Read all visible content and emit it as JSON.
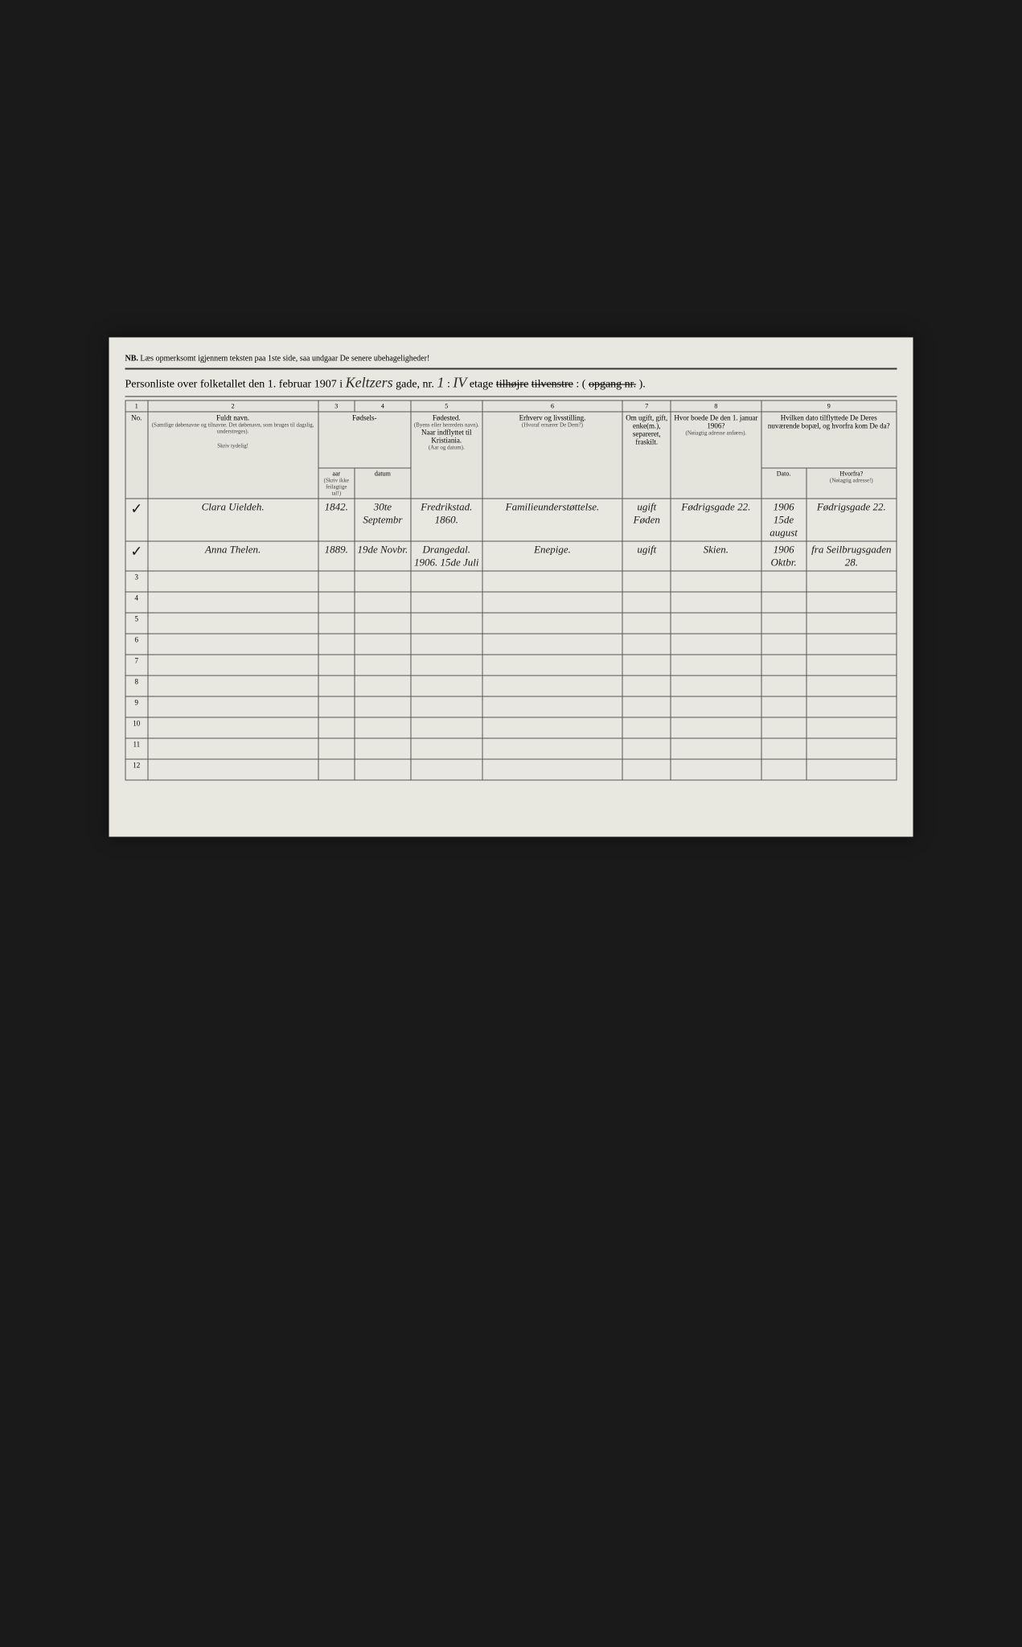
{
  "nb_prefix": "NB.",
  "nb_text": "Læs opmerksomt igjennem teksten paa 1ste side, saa undgaar De senere ubehageligheder!",
  "title_prefix": "Personliste over folketallet den 1. februar 1907 i",
  "street_hand": "Keltzers",
  "street_suffix": "gade, nr.",
  "house_no": "1",
  "floor_sep": ":",
  "floor_hand": "IV",
  "floor_suffix": "etage",
  "side_strike1": "tilhøjre",
  "side_strike2": "tilvenstre",
  "side_sep": ": (",
  "opgang_strike": "opgang nr.",
  "closing": ").",
  "col_nums": [
    "1",
    "2",
    "3",
    "4",
    "5",
    "6",
    "7",
    "8",
    "9"
  ],
  "hdr_no": "No.",
  "hdr_name": "Fuldt navn.",
  "hdr_name_note": "(Samtlige døbenavne og tilnavne. Det døbenavn, som bruges til dagslig, understreges).",
  "hdr_name_sub": "Skriv tydelig!",
  "hdr_birth": "Fødsels-",
  "hdr_birth_year": "aar",
  "hdr_birth_date": "datum",
  "hdr_birth_note": "(Skriv ikke feilagtige tal!)",
  "hdr_birthplace": "Fødested.",
  "hdr_birthplace_note1": "(Byens eller herredets navn).",
  "hdr_birthplace_sub": "Naar indflyttet til Kristiania.",
  "hdr_birthplace_note2": "(Aar og datum).",
  "hdr_occ": "Erhverv og livsstilling.",
  "hdr_occ_note": "(Hvoraf ernærer De Dem?)",
  "hdr_marital": "Om ugift, gift, enke(m.), separeret, fraskilt.",
  "hdr_addr1906": "Hvor boede De den 1. januar 1906?",
  "hdr_addr1906_note": "(Nøiagtig adresse anføres).",
  "hdr_move": "Hvilken dato tilflyttede De Deres nuværende bopæl, og hvorfra kom De da?",
  "hdr_move_date": "Dato.",
  "hdr_move_from": "Hvorfra?",
  "hdr_move_from_note": "(Nøiagtig adresse!)",
  "rows": [
    {
      "no": "✓",
      "name": "Clara Uieldeh.",
      "year": "1842.",
      "date": "30te Septembr",
      "birthplace": "Fredrikstad. 1860.",
      "occ": "Familieunderstøttelse.",
      "marital": "ugift Føden",
      "addr1906": "Fødrigsgade 22.",
      "movedate": "1906 15de august",
      "movefrom": "Fødrigsgade 22."
    },
    {
      "no": "✓",
      "name": "Anna Thelen.",
      "year": "1889.",
      "date": "19de Novbr.",
      "birthplace": "Drangedal. 1906. 15de Juli",
      "occ": "Enepige.",
      "marital": "ugift",
      "addr1906": "Skien.",
      "movedate": "1906 Oktbr.",
      "movefrom": "fra Seilbrugsgaden 28."
    }
  ],
  "empty_rows": [
    "3",
    "4",
    "5",
    "6",
    "7",
    "8",
    "9",
    "10",
    "11",
    "12"
  ]
}
